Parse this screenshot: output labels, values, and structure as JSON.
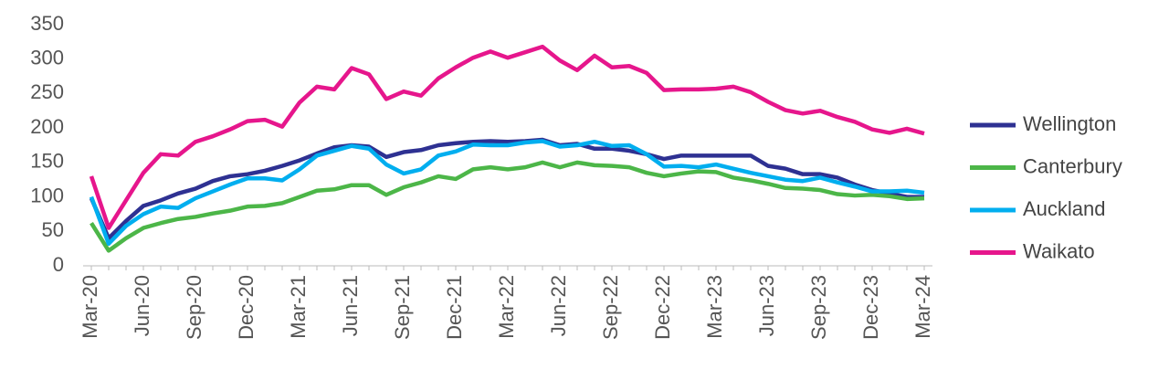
{
  "chart_data": {
    "type": "line",
    "categories": [
      "Mar-20",
      null,
      null,
      "Jun-20",
      null,
      null,
      "Sep-20",
      null,
      null,
      "Dec-20",
      null,
      null,
      "Mar-21",
      null,
      null,
      "Jun-21",
      null,
      null,
      "Sep-21",
      null,
      null,
      "Dec-21",
      null,
      null,
      "Mar-22",
      null,
      null,
      "Jun-22",
      null,
      null,
      "Sep-22",
      null,
      null,
      "Dec-22",
      null,
      null,
      "Mar-23",
      null,
      null,
      "Jun-23",
      null,
      null,
      "Sep-23",
      null,
      null,
      "Dec-23",
      null,
      null,
      "Mar-24"
    ],
    "series": [
      {
        "name": "Wellington",
        "color": "#2e3192",
        "values": [
          98,
          40,
          65,
          87,
          95,
          105,
          112,
          123,
          130,
          133,
          138,
          145,
          153,
          163,
          172,
          175,
          173,
          158,
          165,
          168,
          175,
          178,
          180,
          181,
          180,
          181,
          183,
          175,
          177,
          170,
          170,
          167,
          162,
          155,
          160,
          160,
          160,
          160,
          160,
          145,
          141,
          133,
          133,
          128,
          118,
          110,
          105,
          100,
          100
        ]
      },
      {
        "name": "Canterbury",
        "color": "#4cb648",
        "values": [
          62,
          22,
          40,
          55,
          62,
          68,
          71,
          76,
          80,
          86,
          87,
          91,
          100,
          109,
          111,
          117,
          117,
          103,
          114,
          121,
          130,
          126,
          140,
          143,
          140,
          143,
          150,
          143,
          150,
          146,
          145,
          143,
          135,
          130,
          134,
          137,
          136,
          128,
          124,
          119,
          113,
          112,
          110,
          104,
          102,
          103,
          101,
          97,
          98
        ]
      },
      {
        "name": "Auckland",
        "color": "#00aeef",
        "values": [
          100,
          32,
          58,
          75,
          86,
          84,
          98,
          108,
          118,
          127,
          127,
          124,
          140,
          160,
          167,
          174,
          170,
          147,
          134,
          140,
          160,
          166,
          176,
          175,
          175,
          179,
          181,
          173,
          175,
          180,
          174,
          175,
          162,
          144,
          145,
          143,
          147,
          141,
          135,
          130,
          125,
          123,
          128,
          121,
          115,
          108,
          108,
          109,
          106
        ]
      },
      {
        "name": "Waikato",
        "color": "#e6168c",
        "values": [
          130,
          55,
          95,
          135,
          162,
          160,
          180,
          188,
          198,
          210,
          212,
          202,
          237,
          260,
          256,
          287,
          278,
          242,
          253,
          247,
          272,
          288,
          302,
          311,
          302,
          310,
          318,
          298,
          284,
          305,
          288,
          290,
          280,
          255,
          256,
          256,
          257,
          260,
          252,
          238,
          226,
          221,
          225,
          216,
          209,
          198,
          193,
          199,
          192
        ]
      }
    ],
    "ylim": [
      0,
      350
    ],
    "yticks": [
      0,
      50,
      100,
      150,
      200,
      250,
      300,
      350
    ],
    "grid": false,
    "legend": "right"
  }
}
